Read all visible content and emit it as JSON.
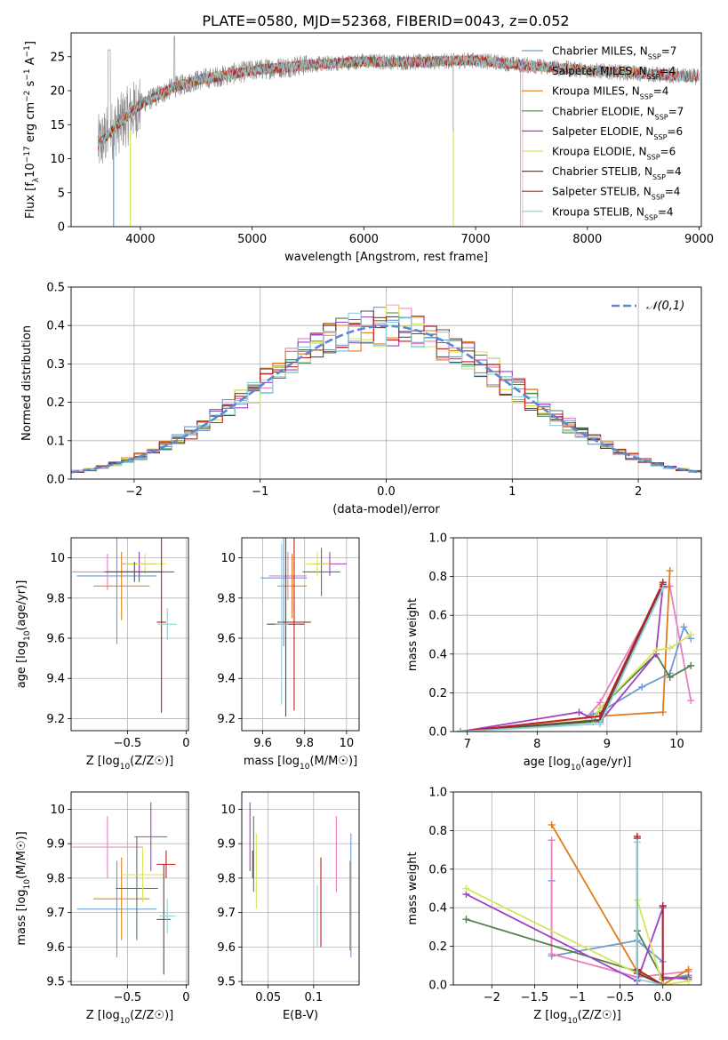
{
  "figure_title": "PLATE=0580, MJD=52368, FIBERID=0043, z=0.052",
  "models": [
    {
      "name": "Chabrier MILES",
      "nssp": "7",
      "color": "#6a9bd9"
    },
    {
      "name": "Salpeter MILES",
      "nssp": "4",
      "color": "#e87fc1"
    },
    {
      "name": "Kroupa MILES",
      "nssp": "4",
      "color": "#e07b1c"
    },
    {
      "name": "Chabrier ELODIE",
      "nssp": "7",
      "color": "#4f7f4f"
    },
    {
      "name": "Salpeter ELODIE",
      "nssp": "6",
      "color": "#a23fc4"
    },
    {
      "name": "Kroupa ELODIE",
      "nssp": "6",
      "color": "#d9e35a"
    },
    {
      "name": "Chabrier STELIB",
      "nssp": "4",
      "color": "#5a4a42"
    },
    {
      "name": "Salpeter STELIB",
      "nssp": "4",
      "color": "#c21d1d"
    },
    {
      "name": "Kroupa STELIB",
      "nssp": "4",
      "color": "#8fd0d6"
    }
  ],
  "chart_data": [
    {
      "id": "spectrum",
      "type": "line",
      "xlabel": "wavelength [Angstrom, rest frame]",
      "ylabel": "Flux [f_λ10^-17 erg cm^-2 s^-1 A^-1]",
      "xlim": [
        3380,
        9020
      ],
      "ylim": [
        0,
        28.5
      ],
      "xticks": [
        4000,
        5000,
        6000,
        7000,
        8000,
        9000
      ],
      "yticks": [
        0,
        5,
        10,
        15,
        20,
        25
      ],
      "grid": false,
      "legend_position": "right",
      "data_range": [
        3620,
        9000
      ],
      "continuum": {
        "x": [
          3620,
          3800,
          4000,
          4300,
          4500,
          5000,
          5500,
          6000,
          6500,
          7000,
          7400,
          8000,
          9000
        ],
        "y": [
          12,
          15,
          18,
          20.5,
          21.5,
          23,
          23.8,
          24.3,
          24.2,
          24.5,
          23.8,
          23,
          22
        ]
      },
      "model_cutoffs": [
        9000,
        7420,
        7400,
        6800,
        9000,
        9000,
        9000,
        9000,
        9000
      ]
    },
    {
      "id": "residuals",
      "type": "bar",
      "xlabel": "(data-model)/error",
      "ylabel": "Normed distribution",
      "xlim": [
        -2.5,
        2.5
      ],
      "ylim": [
        0,
        0.5
      ],
      "xticks": [
        -2,
        -1,
        0,
        1,
        2
      ],
      "yticks": [
        0,
        0.1,
        0.2,
        0.3,
        0.4,
        0.5
      ],
      "grid": true,
      "legend": "𝒩(0,1)",
      "legend_position": "top-right",
      "bin_width": 0.1,
      "bin_start": -2.5,
      "bin_count": 50
    },
    {
      "id": "age_vs_Z",
      "type": "scatter",
      "xlabel": "Z [log10(Z/Z☉)]",
      "ylabel": "age  [log10(age/yr)]",
      "xlim": [
        -0.98,
        0.02
      ],
      "ylim": [
        9.14,
        10.1
      ],
      "xticks": [
        -0.5,
        0.0
      ],
      "yticks": [
        9.2,
        9.4,
        9.6,
        9.8,
        10.0
      ],
      "grid": true,
      "points": [
        {
          "x": -0.59,
          "xerr": 0.34,
          "y": 9.91,
          "yerr": 0.34
        },
        {
          "x": -0.67,
          "xerr": 0.3,
          "y": 9.93,
          "yerr": 0.09
        },
        {
          "x": -0.55,
          "xerr": 0.24,
          "y": 9.86,
          "yerr": 0.17
        },
        {
          "x": -0.4,
          "xerr": 0.3,
          "y": 9.93,
          "yerr": 0.05
        },
        {
          "x": -0.4,
          "xerr": 0.14,
          "y": 9.97,
          "yerr": 0.06
        },
        {
          "x": -0.35,
          "xerr": 0.18,
          "y": 9.97,
          "yerr": 0.05
        },
        {
          "x": -0.44,
          "xerr": 0.24,
          "y": 9.93,
          "yerr": 0.05
        },
        {
          "x": -0.21,
          "xerr": 0.04,
          "y": 9.68,
          "yerr": 0.45
        },
        {
          "x": -0.16,
          "xerr": 0.08,
          "y": 9.67,
          "yerr": 0.08
        }
      ]
    },
    {
      "id": "age_vs_mass",
      "type": "scatter",
      "xlabel": "mass [log10(M/M☉)]",
      "ylabel": "",
      "xlim": [
        9.5,
        10.06
      ],
      "ylim": [
        9.14,
        10.1
      ],
      "xticks": [
        9.6,
        9.8,
        10.0
      ],
      "yticks": [
        9.2,
        9.4,
        9.6,
        9.8,
        10.0
      ],
      "grid": true,
      "points": [
        {
          "x": 9.7,
          "xerr": 0.11,
          "y": 9.9,
          "yerr": 0.34
        },
        {
          "x": 9.72,
          "xerr": 0.09,
          "y": 9.91,
          "yerr": 0.12
        },
        {
          "x": 9.74,
          "xerr": 0.07,
          "y": 9.86,
          "yerr": 0.16
        },
        {
          "x": 9.88,
          "xerr": 0.09,
          "y": 9.93,
          "yerr": 0.12
        },
        {
          "x": 9.92,
          "xerr": 0.08,
          "y": 9.97,
          "yerr": 0.06
        },
        {
          "x": 9.86,
          "xerr": 0.06,
          "y": 9.97,
          "yerr": 0.06
        },
        {
          "x": 9.71,
          "xerr": 0.09,
          "y": 9.67,
          "yerr": 0.46
        },
        {
          "x": 9.75,
          "xerr": 0.08,
          "y": 9.68,
          "yerr": 0.44
        },
        {
          "x": 9.69,
          "xerr": 0.03,
          "y": 9.67,
          "yerr": 0.4
        }
      ]
    },
    {
      "id": "massweight_vs_age",
      "type": "line",
      "xlabel": "age  [log10(age/yr)]",
      "ylabel": "mass weight",
      "xlim": [
        6.8,
        10.35
      ],
      "ylim": [
        0,
        1.0
      ],
      "xticks": [
        7,
        8,
        9,
        10
      ],
      "yticks": [
        0,
        0.2,
        0.4,
        0.6,
        0.8,
        1.0
      ],
      "grid": true,
      "series": [
        {
          "x": [
            6.9,
            8.7,
            8.8,
            8.9,
            9.5,
            9.9,
            10.1,
            10.2
          ],
          "y": [
            0.0,
            0.07,
            0.09,
            0.1,
            0.23,
            0.3,
            0.54,
            0.48
          ]
        },
        {
          "x": [
            6.9,
            8.7,
            8.9,
            9.8,
            9.9,
            10.2
          ],
          "y": [
            0.0,
            0.07,
            0.15,
            0.74,
            0.75,
            0.16
          ]
        },
        {
          "x": [
            6.9,
            8.9,
            9.8,
            9.9
          ],
          "y": [
            0.0,
            0.08,
            0.1,
            0.83
          ]
        },
        {
          "x": [
            6.9,
            8.8,
            8.9,
            9.7,
            9.9,
            10.2
          ],
          "y": [
            0.0,
            0.05,
            0.12,
            0.4,
            0.28,
            0.34
          ]
        },
        {
          "x": [
            6.9,
            8.6,
            8.9,
            9.7,
            9.8
          ],
          "y": [
            0.0,
            0.1,
            0.05,
            0.4,
            0.75
          ]
        },
        {
          "x": [
            6.9,
            8.8,
            8.9,
            9.7,
            9.9,
            10.2
          ],
          "y": [
            0.0,
            0.06,
            0.12,
            0.42,
            0.43,
            0.5
          ]
        },
        {
          "x": [
            6.9,
            8.9,
            9.8
          ],
          "y": [
            0.0,
            0.06,
            0.76
          ]
        },
        {
          "x": [
            6.9,
            8.9,
            9.8
          ],
          "y": [
            0.0,
            0.08,
            0.77
          ]
        },
        {
          "x": [
            6.9,
            8.9,
            9.8
          ],
          "y": [
            0.0,
            0.04,
            0.74
          ]
        }
      ]
    },
    {
      "id": "mass_vs_Z",
      "type": "scatter",
      "xlabel": "Z [log10(Z/Z☉)]",
      "ylabel": "mass [log10(M/M☉)]",
      "xlim": [
        -0.98,
        0.02
      ],
      "ylim": [
        9.49,
        10.05
      ],
      "xticks": [
        -0.5,
        0.0
      ],
      "yticks": [
        9.5,
        9.6,
        9.7,
        9.8,
        9.9,
        10.0
      ],
      "grid": true,
      "points": [
        {
          "x": -0.59,
          "xerr": 0.34,
          "y": 9.71,
          "yerr": 0.14
        },
        {
          "x": -0.67,
          "xerr": 0.3,
          "y": 9.89,
          "yerr": 0.09
        },
        {
          "x": -0.55,
          "xerr": 0.24,
          "y": 9.74,
          "yerr": 0.12
        },
        {
          "x": -0.42,
          "xerr": 0.18,
          "y": 9.77,
          "yerr": 0.15
        },
        {
          "x": -0.3,
          "xerr": 0.14,
          "y": 9.92,
          "yerr": 0.1
        },
        {
          "x": -0.37,
          "xerr": 0.18,
          "y": 9.81,
          "yerr": 0.08
        },
        {
          "x": -0.19,
          "xerr": 0.06,
          "y": 9.68,
          "yerr": 0.16
        },
        {
          "x": -0.17,
          "xerr": 0.08,
          "y": 9.84,
          "yerr": 0.04
        },
        {
          "x": -0.16,
          "xerr": 0.07,
          "y": 9.69,
          "yerr": 0.05
        }
      ]
    },
    {
      "id": "mass_vs_EBV",
      "type": "scatter",
      "xlabel": "E(B-V)",
      "ylabel": "",
      "xlim": [
        0.021,
        0.15
      ],
      "ylim": [
        9.49,
        10.05
      ],
      "xticks": [
        0.05,
        0.1
      ],
      "yticks": [
        9.5,
        9.6,
        9.7,
        9.8,
        9.9,
        10.0
      ],
      "grid": true,
      "points": [
        {
          "x": 0.141,
          "xerr": 0.0,
          "y": 9.75,
          "yerr": 0.18
        },
        {
          "x": 0.125,
          "xerr": 0.0,
          "y": 9.87,
          "yerr": 0.11
        },
        {
          "x": 0.14,
          "xerr": 0.0,
          "y": 9.72,
          "yerr": 0.13
        },
        {
          "x": 0.034,
          "xerr": 0.0,
          "y": 9.87,
          "yerr": 0.11
        },
        {
          "x": 0.03,
          "xerr": 0.0,
          "y": 9.92,
          "yerr": 0.1
        },
        {
          "x": 0.037,
          "xerr": 0.0,
          "y": 9.82,
          "yerr": 0.11
        },
        {
          "x": 0.033,
          "xerr": 0.0,
          "y": 9.84,
          "yerr": 0.04
        },
        {
          "x": 0.108,
          "xerr": 0.0,
          "y": 9.73,
          "yerr": 0.13
        },
        {
          "x": 0.104,
          "xerr": 0.0,
          "y": 9.69,
          "yerr": 0.09
        }
      ]
    },
    {
      "id": "massweight_vs_Z",
      "type": "line",
      "xlabel": "Z [log10(Z/Z☉)]",
      "ylabel": "mass weight",
      "xlim": [
        -2.45,
        0.45
      ],
      "ylim": [
        0,
        1.0
      ],
      "xticks": [
        -2.0,
        -1.5,
        -1.0,
        -0.5,
        0.0
      ],
      "yticks": [
        0,
        0.2,
        0.4,
        0.6,
        0.8,
        1.0
      ],
      "grid": true,
      "series": [
        {
          "x": [
            -1.3,
            -1.3,
            -0.3,
            0.0,
            0.0,
            0.3
          ],
          "y": [
            0.54,
            0.15,
            0.23,
            0.12,
            0.03,
            0.05
          ]
        },
        {
          "x": [
            -1.3,
            -1.3,
            -0.3,
            0.3
          ],
          "y": [
            0.75,
            0.16,
            0.04,
            0.07
          ]
        },
        {
          "x": [
            -1.3,
            -0.3,
            0.0,
            0.3
          ],
          "y": [
            0.83,
            0.07,
            0.0,
            0.08
          ]
        },
        {
          "x": [
            -2.3,
            -0.3,
            -0.3,
            0.0,
            0.3
          ],
          "y": [
            0.34,
            0.07,
            0.28,
            0.03,
            0.04
          ]
        },
        {
          "x": [
            -2.3,
            -0.3,
            0.0,
            0.0,
            0.3
          ],
          "y": [
            0.47,
            0.02,
            0.4,
            0.04,
            0.03
          ]
        },
        {
          "x": [
            -2.3,
            -0.3,
            -0.3,
            0.0,
            0.3
          ],
          "y": [
            0.5,
            0.06,
            0.44,
            0.0,
            0.02
          ]
        },
        {
          "x": [
            -0.3,
            -0.3,
            0.0,
            0.0
          ],
          "y": [
            0.76,
            0.06,
            0.0,
            0.41
          ]
        },
        {
          "x": [
            -0.3,
            -0.3,
            0.0,
            0.0
          ],
          "y": [
            0.77,
            0.08,
            0.0,
            0.41
          ]
        },
        {
          "x": [
            -0.3,
            -0.3,
            0.0
          ],
          "y": [
            0.74,
            0.03,
            0.0
          ]
        }
      ]
    }
  ]
}
